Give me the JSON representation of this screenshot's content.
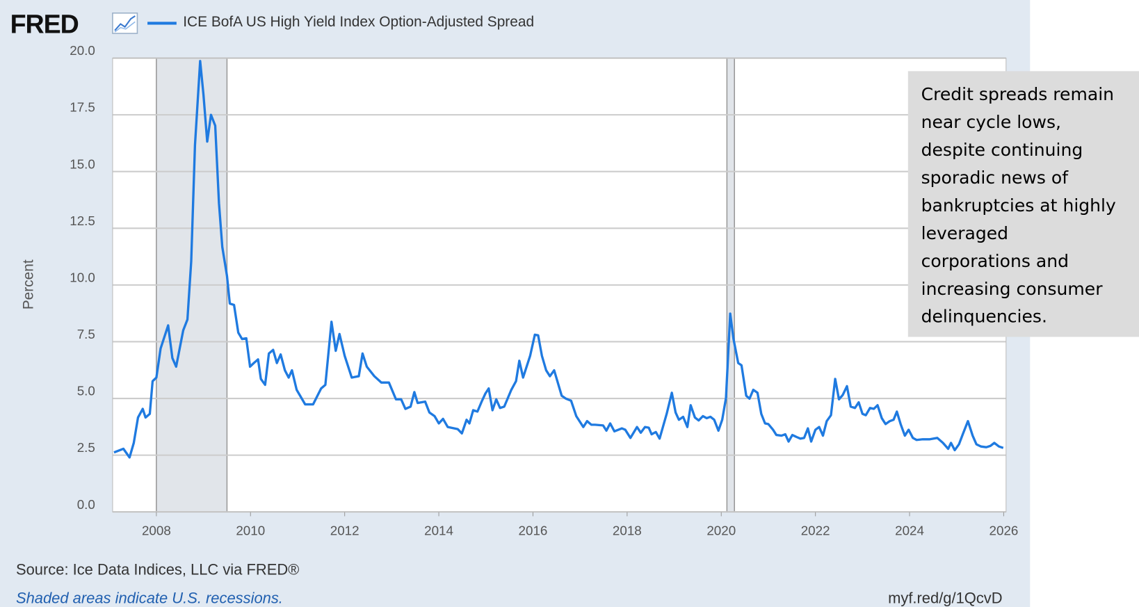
{
  "chart_data": {
    "type": "line",
    "logo": "FRED",
    "title": "ICE BofA US High Yield Index Option-Adjusted Spread",
    "ylabel": "Percent",
    "source": "Source: Ice Data Indices, LLC via FRED®",
    "note": "Shaded areas indicate U.S. recessions.",
    "link": "myf.red/g/1QcvD",
    "annotation": [
      "Credit spreads remain",
      "near cycle lows,",
      "despite continuing",
      "sporadic news of",
      "bankruptcies at highly",
      "leveraged",
      "corporations and",
      "increasing consumer",
      "delinquencies."
    ],
    "xlim": [
      2007.07,
      2026.05
    ],
    "xticks": [
      2008,
      2010,
      2012,
      2014,
      2016,
      2018,
      2020,
      2022,
      2024,
      2026
    ],
    "ylim": [
      0,
      20
    ],
    "yticks": [
      {
        "value": 0,
        "label": "0.0"
      },
      2.5,
      {
        "value": 5,
        "label": "5.0"
      },
      7.5,
      {
        "value": 10,
        "label": "10.0"
      },
      12.5,
      {
        "value": 15,
        "label": "15.0"
      },
      17.5,
      {
        "value": 20,
        "label": "20.0"
      }
    ],
    "grid": true,
    "recessions": [
      [
        2008.0,
        2009.5
      ],
      [
        2020.12,
        2020.28
      ]
    ],
    "x": [
      2007.1,
      2007.3,
      2007.43,
      2007.52,
      2007.61,
      2007.71,
      2007.77,
      2007.86,
      2007.92,
      2008.0,
      2008.09,
      2008.25,
      2008.34,
      2008.42,
      2008.57,
      2008.66,
      2008.74,
      2008.82,
      2008.93,
      2009.0,
      2009.08,
      2009.16,
      2009.25,
      2009.33,
      2009.4,
      2009.5,
      2009.56,
      2009.65,
      2009.74,
      2009.82,
      2009.91,
      2009.99,
      2010.07,
      2010.16,
      2010.22,
      2010.31,
      2010.39,
      2010.48,
      2010.56,
      2010.64,
      2010.73,
      2010.81,
      2010.88,
      2010.98,
      2011.16,
      2011.33,
      2011.5,
      2011.59,
      2011.72,
      2011.81,
      2011.89,
      2012.0,
      2012.15,
      2012.3,
      2012.38,
      2012.47,
      2012.63,
      2012.78,
      2012.94,
      2013.09,
      2013.2,
      2013.29,
      2013.4,
      2013.48,
      2013.55,
      2013.71,
      2013.8,
      2013.91,
      2014.0,
      2014.09,
      2014.19,
      2014.4,
      2014.49,
      2014.59,
      2014.65,
      2014.73,
      2014.82,
      2014.91,
      2014.99,
      2015.06,
      2015.14,
      2015.22,
      2015.3,
      2015.39,
      2015.54,
      2015.64,
      2015.71,
      2015.79,
      2015.94,
      2016.04,
      2016.11,
      2016.19,
      2016.28,
      2016.36,
      2016.45,
      2016.61,
      2016.7,
      2016.81,
      2016.92,
      2017.07,
      2017.15,
      2017.24,
      2017.32,
      2017.49,
      2017.56,
      2017.64,
      2017.73,
      2017.89,
      2017.96,
      2018.07,
      2018.21,
      2018.29,
      2018.38,
      2018.46,
      2018.52,
      2018.61,
      2018.69,
      2018.84,
      2018.95,
      2019.03,
      2019.1,
      2019.19,
      2019.28,
      2019.35,
      2019.44,
      2019.52,
      2019.61,
      2019.69,
      2019.77,
      2019.85,
      2019.94,
      2020.02,
      2020.1,
      2020.19,
      2020.26,
      2020.36,
      2020.43,
      2020.53,
      2020.6,
      2020.68,
      2020.77,
      2020.85,
      2020.93,
      2021.0,
      2021.1,
      2021.17,
      2021.28,
      2021.36,
      2021.43,
      2021.51,
      2021.6,
      2021.68,
      2021.76,
      2021.84,
      2021.91,
      2022.0,
      2022.08,
      2022.16,
      2022.24,
      2022.33,
      2022.42,
      2022.5,
      2022.58,
      2022.67,
      2022.75,
      2022.84,
      2022.92,
      2023.0,
      2023.07,
      2023.16,
      2023.24,
      2023.32,
      2023.41,
      2023.49,
      2023.58,
      2023.66,
      2023.73,
      2023.81,
      2023.9,
      2023.98,
      2024.07,
      2024.15,
      2024.28,
      2024.43,
      2024.59,
      2024.71,
      2024.82,
      2024.88,
      2024.96,
      2025.05,
      2025.13,
      2025.24,
      2025.34,
      2025.42,
      2025.52,
      2025.63,
      2025.72,
      2025.8,
      2025.9,
      2025.99
    ],
    "series": [
      {
        "name": "ICE BofA US High Yield Index Option-Adjusted Spread",
        "color": "#1f7ae0",
        "values": [
          2.62,
          2.78,
          2.4,
          3.04,
          4.16,
          4.54,
          4.16,
          4.32,
          5.76,
          5.92,
          7.2,
          8.22,
          6.78,
          6.4,
          8.0,
          8.48,
          11.04,
          16.16,
          19.87,
          18.4,
          16.32,
          17.5,
          17.02,
          13.6,
          11.68,
          10.4,
          9.18,
          9.12,
          7.9,
          7.62,
          7.65,
          6.4,
          6.56,
          6.72,
          5.86,
          5.6,
          6.98,
          7.14,
          6.56,
          6.94,
          6.24,
          5.92,
          6.24,
          5.38,
          4.74,
          4.74,
          5.44,
          5.6,
          8.38,
          7.1,
          7.84,
          6.88,
          5.92,
          5.98,
          6.98,
          6.4,
          5.98,
          5.7,
          5.7,
          4.96,
          4.96,
          4.54,
          4.64,
          5.28,
          4.8,
          4.86,
          4.38,
          4.22,
          3.9,
          4.1,
          3.74,
          3.65,
          3.46,
          4.06,
          3.9,
          4.48,
          4.42,
          4.86,
          5.22,
          5.44,
          4.48,
          4.96,
          4.58,
          4.64,
          5.38,
          5.76,
          6.66,
          5.92,
          6.88,
          7.81,
          7.78,
          6.88,
          6.24,
          5.98,
          6.24,
          5.12,
          4.99,
          4.9,
          4.22,
          3.74,
          4.0,
          3.84,
          3.84,
          3.81,
          3.58,
          3.9,
          3.55,
          3.68,
          3.62,
          3.26,
          3.74,
          3.49,
          3.74,
          3.71,
          3.42,
          3.52,
          3.23,
          4.32,
          5.25,
          4.38,
          4.06,
          4.19,
          3.74,
          4.7,
          4.16,
          4.03,
          4.22,
          4.13,
          4.19,
          4.06,
          3.58,
          4.06,
          5.02,
          8.74,
          7.62,
          6.56,
          6.46,
          5.12,
          4.99,
          5.38,
          5.25,
          4.32,
          3.9,
          3.87,
          3.62,
          3.39,
          3.36,
          3.42,
          3.1,
          3.39,
          3.3,
          3.23,
          3.26,
          3.68,
          3.1,
          3.62,
          3.74,
          3.36,
          4.0,
          4.26,
          5.86,
          4.96,
          5.15,
          5.54,
          4.64,
          4.58,
          4.83,
          4.32,
          4.26,
          4.58,
          4.54,
          4.7,
          4.13,
          3.87,
          4.0,
          4.06,
          4.42,
          3.87,
          3.36,
          3.62,
          3.26,
          3.17,
          3.2,
          3.2,
          3.26,
          3.04,
          2.78,
          3.04,
          2.72,
          2.98,
          3.42,
          4.0,
          3.36,
          2.98,
          2.88,
          2.85,
          2.91,
          3.04,
          2.88,
          2.82
        ]
      }
    ]
  }
}
